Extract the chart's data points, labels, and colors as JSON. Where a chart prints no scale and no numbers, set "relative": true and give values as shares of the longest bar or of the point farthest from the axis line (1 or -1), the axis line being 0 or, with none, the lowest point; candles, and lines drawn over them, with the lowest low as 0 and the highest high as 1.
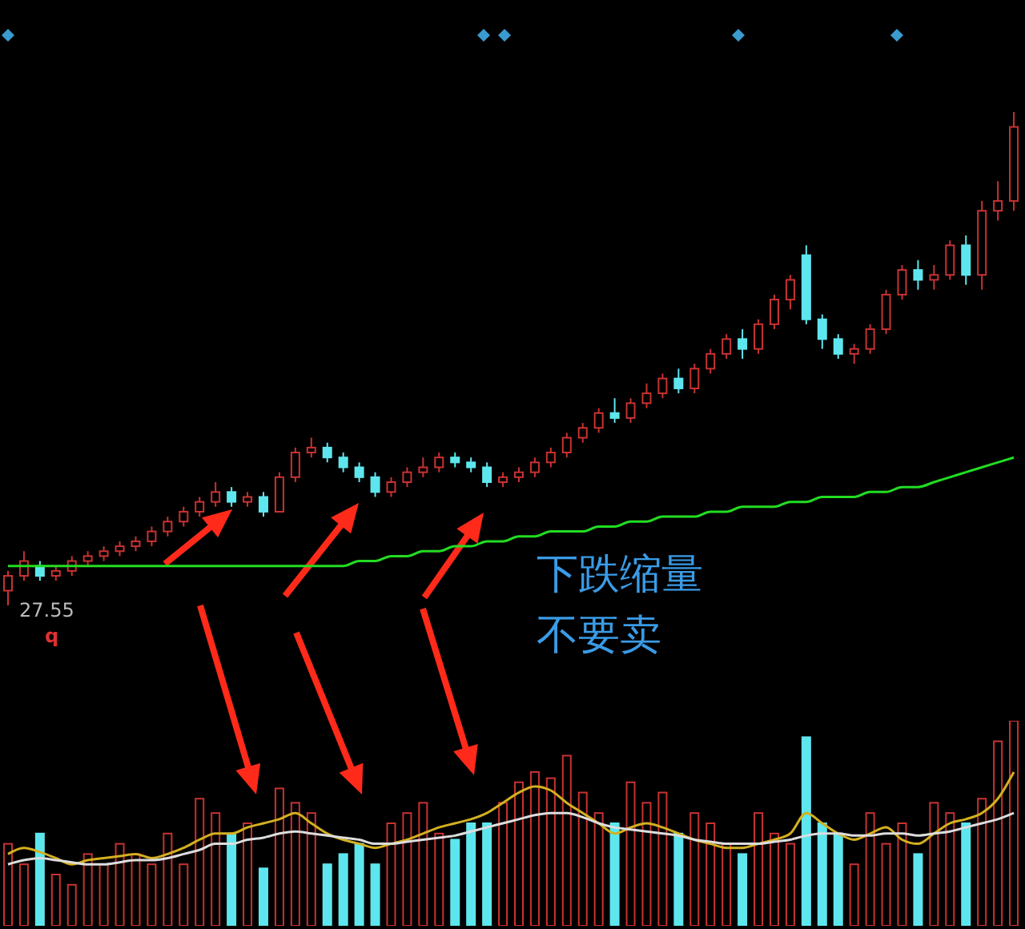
{
  "chart_data": [
    {
      "type": "candlestick",
      "relative": true,
      "categories": [
        null,
        null,
        null,
        null,
        null,
        null,
        null,
        null,
        null,
        null,
        null,
        null,
        null,
        null,
        null,
        null,
        null,
        null,
        null,
        null,
        null,
        null,
        null,
        null,
        null,
        null,
        null,
        null,
        null,
        null,
        null,
        null,
        null,
        null,
        null,
        null,
        null,
        null,
        null,
        null,
        null,
        null,
        null,
        null,
        null,
        null,
        null,
        null,
        null,
        null,
        null,
        null,
        null,
        null,
        null,
        null,
        null,
        null,
        null,
        null,
        null,
        null,
        null,
        null
      ],
      "ohlc": [
        [
          0.03,
          0.07,
          0,
          0.06
        ],
        [
          0.06,
          0.11,
          0.05,
          0.09
        ],
        [
          0.08,
          0.09,
          0.05,
          0.06
        ],
        [
          0.06,
          0.08,
          0.05,
          0.07
        ],
        [
          0.07,
          0.1,
          0.06,
          0.09
        ],
        [
          0.09,
          0.11,
          0.08,
          0.1
        ],
        [
          0.1,
          0.12,
          0.09,
          0.11
        ],
        [
          0.11,
          0.13,
          0.1,
          0.12
        ],
        [
          0.12,
          0.14,
          0.11,
          0.13
        ],
        [
          0.13,
          0.16,
          0.12,
          0.15
        ],
        [
          0.15,
          0.18,
          0.14,
          0.17
        ],
        [
          0.17,
          0.2,
          0.16,
          0.19
        ],
        [
          0.19,
          0.22,
          0.18,
          0.21
        ],
        [
          0.21,
          0.25,
          0.2,
          0.23
        ],
        [
          0.23,
          0.24,
          0.2,
          0.21
        ],
        [
          0.21,
          0.23,
          0.2,
          0.22
        ],
        [
          0.22,
          0.23,
          0.18,
          0.19
        ],
        [
          0.19,
          0.27,
          0.19,
          0.26
        ],
        [
          0.26,
          0.32,
          0.25,
          0.31
        ],
        [
          0.31,
          0.34,
          0.3,
          0.32
        ],
        [
          0.32,
          0.33,
          0.29,
          0.3
        ],
        [
          0.3,
          0.31,
          0.27,
          0.28
        ],
        [
          0.28,
          0.29,
          0.25,
          0.26
        ],
        [
          0.26,
          0.27,
          0.22,
          0.23
        ],
        [
          0.23,
          0.26,
          0.22,
          0.25
        ],
        [
          0.25,
          0.28,
          0.24,
          0.27
        ],
        [
          0.27,
          0.3,
          0.26,
          0.28
        ],
        [
          0.28,
          0.31,
          0.27,
          0.3
        ],
        [
          0.3,
          0.31,
          0.28,
          0.29
        ],
        [
          0.29,
          0.3,
          0.27,
          0.28
        ],
        [
          0.28,
          0.29,
          0.24,
          0.25
        ],
        [
          0.25,
          0.27,
          0.24,
          0.26
        ],
        [
          0.26,
          0.28,
          0.25,
          0.27
        ],
        [
          0.27,
          0.3,
          0.26,
          0.29
        ],
        [
          0.29,
          0.32,
          0.28,
          0.31
        ],
        [
          0.31,
          0.35,
          0.3,
          0.34
        ],
        [
          0.34,
          0.37,
          0.33,
          0.36
        ],
        [
          0.36,
          0.4,
          0.35,
          0.39
        ],
        [
          0.39,
          0.42,
          0.37,
          0.38
        ],
        [
          0.38,
          0.42,
          0.37,
          0.41
        ],
        [
          0.41,
          0.45,
          0.4,
          0.43
        ],
        [
          0.43,
          0.47,
          0.42,
          0.46
        ],
        [
          0.46,
          0.48,
          0.43,
          0.44
        ],
        [
          0.44,
          0.49,
          0.43,
          0.48
        ],
        [
          0.48,
          0.52,
          0.47,
          0.51
        ],
        [
          0.51,
          0.55,
          0.5,
          0.54
        ],
        [
          0.54,
          0.56,
          0.5,
          0.52
        ],
        [
          0.52,
          0.58,
          0.51,
          0.57
        ],
        [
          0.57,
          0.63,
          0.56,
          0.62
        ],
        [
          0.62,
          0.67,
          0.6,
          0.66
        ],
        [
          0.71,
          0.73,
          0.57,
          0.58
        ],
        [
          0.58,
          0.59,
          0.52,
          0.54
        ],
        [
          0.54,
          0.55,
          0.5,
          0.51
        ],
        [
          0.51,
          0.53,
          0.49,
          0.52
        ],
        [
          0.52,
          0.57,
          0.51,
          0.56
        ],
        [
          0.56,
          0.64,
          0.55,
          0.63
        ],
        [
          0.63,
          0.69,
          0.62,
          0.68
        ],
        [
          0.68,
          0.7,
          0.64,
          0.66
        ],
        [
          0.66,
          0.69,
          0.64,
          0.67
        ],
        [
          0.67,
          0.74,
          0.66,
          0.73
        ],
        [
          0.73,
          0.75,
          0.65,
          0.67
        ],
        [
          0.67,
          0.82,
          0.64,
          0.8
        ],
        [
          0.8,
          0.86,
          0.78,
          0.82
        ],
        [
          0.82,
          1,
          0.8,
          0.97
        ]
      ],
      "colors": [
        "#c83232",
        "#c83232",
        "#5ee6ee",
        "#c83232",
        "#c83232",
        "#c83232",
        "#c83232",
        "#c83232",
        "#c83232",
        "#c83232",
        "#c83232",
        "#c83232",
        "#c83232",
        "#c83232",
        "#5ee6ee",
        "#c83232",
        "#5ee6ee",
        "#c83232",
        "#c83232",
        "#c83232",
        "#5ee6ee",
        "#5ee6ee",
        "#5ee6ee",
        "#5ee6ee",
        "#c83232",
        "#c83232",
        "#c83232",
        "#c83232",
        "#5ee6ee",
        "#5ee6ee",
        "#5ee6ee",
        "#c83232",
        "#c83232",
        "#c83232",
        "#c83232",
        "#c83232",
        "#c83232",
        "#c83232",
        "#5ee6ee",
        "#c83232",
        "#c83232",
        "#c83232",
        "#5ee6ee",
        "#c83232",
        "#c83232",
        "#c83232",
        "#5ee6ee",
        "#c83232",
        "#c83232",
        "#c83232",
        "#5ee6ee",
        "#5ee6ee",
        "#5ee6ee",
        "#c83232",
        "#c83232",
        "#c83232",
        "#c83232",
        "#5ee6ee",
        "#c83232",
        "#c83232",
        "#5ee6ee",
        "#c83232",
        "#c83232",
        "#c83232"
      ],
      "series": [
        {
          "type": "line",
          "color": "#22dd22",
          "values": [
            0.08,
            0.08,
            0.08,
            0.08,
            0.08,
            0.08,
            0.08,
            0.08,
            0.08,
            0.08,
            0.08,
            0.08,
            0.08,
            0.08,
            0.08,
            0.08,
            0.08,
            0.08,
            0.08,
            0.08,
            0.08,
            0.08,
            0.09,
            0.09,
            0.1,
            0.1,
            0.11,
            0.11,
            0.12,
            0.12,
            0.13,
            0.13,
            0.14,
            0.14,
            0.15,
            0.15,
            0.15,
            0.16,
            0.16,
            0.17,
            0.17,
            0.18,
            0.18,
            0.18,
            0.19,
            0.19,
            0.2,
            0.2,
            0.2,
            0.21,
            0.21,
            0.22,
            0.22,
            0.22,
            0.23,
            0.23,
            0.24,
            0.24,
            0.25,
            0.26,
            0.27,
            0.28,
            0.29,
            0.3
          ]
        }
      ],
      "annotations": [
        "27.55",
        "q",
        "下跌缩量",
        "不要卖"
      ]
    },
    {
      "type": "bar",
      "relative": true,
      "categories": [
        null,
        null,
        null,
        null,
        null,
        null,
        null,
        null,
        null,
        null,
        null,
        null,
        null,
        null,
        null,
        null,
        null,
        null,
        null,
        null,
        null,
        null,
        null,
        null,
        null,
        null,
        null,
        null,
        null,
        null,
        null,
        null,
        null,
        null,
        null,
        null,
        null,
        null,
        null,
        null,
        null,
        null,
        null,
        null,
        null,
        null,
        null,
        null,
        null,
        null,
        null,
        null,
        null,
        null,
        null,
        null,
        null,
        null,
        null,
        null,
        null,
        null,
        null,
        null
      ],
      "series": [
        {
          "type": "bar",
          "values": [
            0.4,
            0.3,
            0.45,
            0.25,
            0.2,
            0.35,
            0.3,
            0.4,
            0.35,
            0.3,
            0.45,
            0.3,
            0.62,
            0.55,
            0.45,
            0.5,
            0.28,
            0.67,
            0.6,
            0.55,
            0.3,
            0.35,
            0.4,
            0.3,
            0.5,
            0.55,
            0.6,
            0.45,
            0.42,
            0.5,
            0.5,
            0.6,
            0.7,
            0.75,
            0.72,
            0.83,
            0.65,
            0.55,
            0.5,
            0.7,
            0.6,
            0.65,
            0.45,
            0.55,
            0.5,
            0.4,
            0.35,
            0.55,
            0.45,
            0.4,
            0.92,
            0.5,
            0.45,
            0.3,
            0.55,
            0.4,
            0.5,
            0.35,
            0.6,
            0.55,
            0.5,
            0.62,
            0.9,
            1
          ],
          "colors": [
            "#c83232",
            "#c83232",
            "#5ee6ee",
            "#c83232",
            "#c83232",
            "#c83232",
            "#c83232",
            "#c83232",
            "#c83232",
            "#c83232",
            "#c83232",
            "#c83232",
            "#c83232",
            "#c83232",
            "#5ee6ee",
            "#c83232",
            "#5ee6ee",
            "#c83232",
            "#c83232",
            "#c83232",
            "#5ee6ee",
            "#5ee6ee",
            "#5ee6ee",
            "#5ee6ee",
            "#c83232",
            "#c83232",
            "#c83232",
            "#c83232",
            "#5ee6ee",
            "#5ee6ee",
            "#5ee6ee",
            "#c83232",
            "#c83232",
            "#c83232",
            "#c83232",
            "#c83232",
            "#c83232",
            "#c83232",
            "#5ee6ee",
            "#c83232",
            "#c83232",
            "#c83232",
            "#5ee6ee",
            "#c83232",
            "#c83232",
            "#c83232",
            "#5ee6ee",
            "#c83232",
            "#c83232",
            "#c83232",
            "#5ee6ee",
            "#5ee6ee",
            "#5ee6ee",
            "#c83232",
            "#c83232",
            "#c83232",
            "#c83232",
            "#5ee6ee",
            "#c83232",
            "#c83232",
            "#5ee6ee",
            "#c83232",
            "#c83232",
            "#c83232"
          ]
        },
        {
          "type": "line",
          "color": "#d4b020",
          "values": [
            0.35,
            0.38,
            0.36,
            0.33,
            0.3,
            0.32,
            0.33,
            0.34,
            0.35,
            0.33,
            0.35,
            0.38,
            0.42,
            0.45,
            0.45,
            0.48,
            0.5,
            0.52,
            0.55,
            0.5,
            0.45,
            0.42,
            0.4,
            0.38,
            0.4,
            0.42,
            0.45,
            0.48,
            0.5,
            0.52,
            0.55,
            0.6,
            0.65,
            0.68,
            0.66,
            0.6,
            0.55,
            0.5,
            0.45,
            0.48,
            0.5,
            0.48,
            0.45,
            0.42,
            0.4,
            0.38,
            0.38,
            0.4,
            0.42,
            0.45,
            0.55,
            0.5,
            0.45,
            0.42,
            0.45,
            0.48,
            0.42,
            0.4,
            0.45,
            0.5,
            0.52,
            0.55,
            0.62,
            0.75
          ]
        },
        {
          "type": "line",
          "color": "#dddddd",
          "values": [
            0.3,
            0.32,
            0.33,
            0.32,
            0.31,
            0.3,
            0.3,
            0.31,
            0.32,
            0.32,
            0.33,
            0.35,
            0.37,
            0.4,
            0.4,
            0.42,
            0.43,
            0.45,
            0.46,
            0.45,
            0.44,
            0.43,
            0.42,
            0.4,
            0.4,
            0.41,
            0.42,
            0.43,
            0.44,
            0.46,
            0.48,
            0.5,
            0.52,
            0.54,
            0.55,
            0.55,
            0.53,
            0.5,
            0.48,
            0.47,
            0.46,
            0.45,
            0.44,
            0.42,
            0.41,
            0.4,
            0.4,
            0.4,
            0.41,
            0.42,
            0.44,
            0.45,
            0.45,
            0.44,
            0.44,
            0.45,
            0.45,
            0.44,
            0.45,
            0.46,
            0.48,
            0.5,
            0.52,
            0.55
          ]
        }
      ]
    }
  ]
}
